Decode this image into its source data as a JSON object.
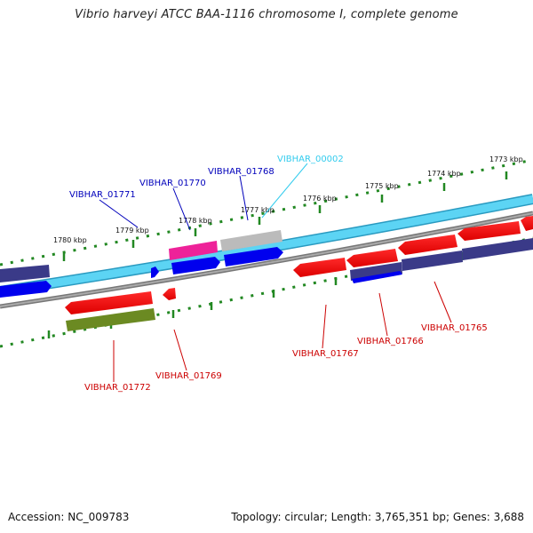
{
  "title": "Vibrio harveyi ATCC BAA-1116 chromosome I, complete genome",
  "footer": {
    "accession": "Accession: NC_009783",
    "summary": "Topology: circular; Length: 3,765,351 bp; Genes: 3,688"
  },
  "colors": {
    "forward_label": "#0000bb",
    "reverse_label": "#cc0000",
    "rna_label": "#33ccee",
    "ticks": "#228822",
    "backbone_blue": "#55ccee",
    "backbone_gray": "#888888"
  },
  "scale": {
    "ticks": [
      {
        "label": "1780 kbp"
      },
      {
        "label": "1779 kbp"
      },
      {
        "label": "1778 kbp"
      },
      {
        "label": "1777 kbp"
      },
      {
        "label": "1776 kbp"
      },
      {
        "label": "1775 kbp"
      },
      {
        "label": "1774 kbp"
      },
      {
        "label": "1773 kbp"
      }
    ]
  },
  "gene_labels": {
    "forward": [
      "VIBHAR_01771",
      "VIBHAR_01770",
      "VIBHAR_01768"
    ],
    "rna": [
      "VIBHAR_00002"
    ],
    "reverse": [
      "VIBHAR_01772",
      "VIBHAR_01769",
      "VIBHAR_01767",
      "VIBHAR_01766",
      "VIBHAR_01765"
    ]
  }
}
